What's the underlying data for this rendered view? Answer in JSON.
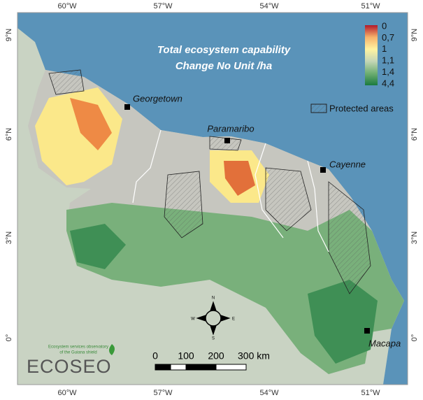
{
  "title": [
    "Total ecosystem  capability",
    "Change No Unit /ha"
  ],
  "graticule": {
    "longitudes": [
      "60°W",
      "57°W",
      "54°W",
      "51°W"
    ],
    "latitudes": [
      "9°N",
      "6°N",
      "3°N",
      "0°"
    ]
  },
  "legend": {
    "labels": [
      "0",
      "0,7",
      "1",
      "1,1",
      "1,4",
      "4,4"
    ],
    "colors": [
      "#b2182b",
      "#f6b26b",
      "#fff3a0",
      "#c4d6b6",
      "#6fae72",
      "#1b7a3e"
    ],
    "protected_areas": "Protected areas"
  },
  "cities": [
    "Georgetown",
    "Paramaribo",
    "Cayenne",
    "Macapa"
  ],
  "scale_bar": [
    "0",
    "100",
    "200",
    "300 km"
  ],
  "compass": [
    "N",
    "E",
    "S",
    "W"
  ],
  "logo": {
    "tagline": [
      "Ecosystem services observatory",
      "of the Guiana shield"
    ],
    "name": "ECOSEO"
  }
}
